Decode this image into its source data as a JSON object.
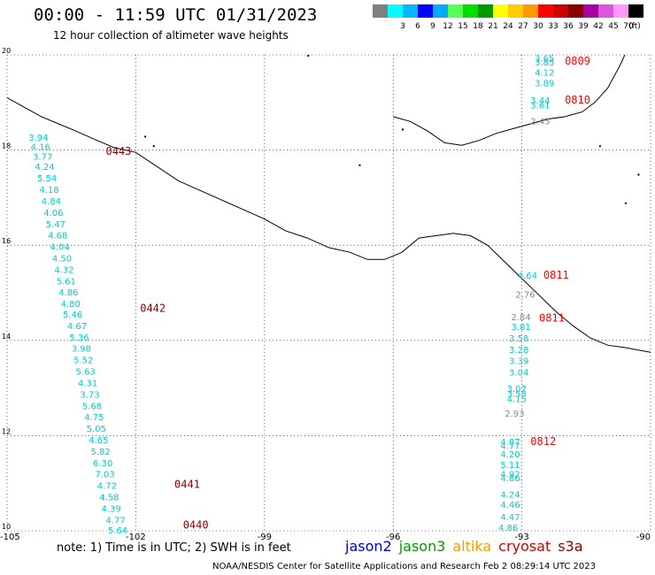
{
  "header": {
    "title": "00:00 - 11:59 UTC 01/31/2023",
    "subtitle": "12 hour collection of altimeter wave heights"
  },
  "legend": {
    "unit": "(ft)",
    "swatches": [
      {
        "label": "",
        "color": "#7f7f7f"
      },
      {
        "label": "3",
        "color": "#00ffff"
      },
      {
        "label": "6",
        "color": "#00b8ff"
      },
      {
        "label": "9",
        "color": "#0000ff"
      },
      {
        "label": "12",
        "color": "#00aaff"
      },
      {
        "label": "15",
        "color": "#55ff55"
      },
      {
        "label": "18",
        "color": "#00dd00"
      },
      {
        "label": "21",
        "color": "#009900"
      },
      {
        "label": "24",
        "color": "#ffff00"
      },
      {
        "label": "27",
        "color": "#ffcc00"
      },
      {
        "label": "30",
        "color": "#ff9900"
      },
      {
        "label": "33",
        "color": "#ff0000"
      },
      {
        "label": "36",
        "color": "#cc0000"
      },
      {
        "label": "39",
        "color": "#880000"
      },
      {
        "label": "42",
        "color": "#aa00aa"
      },
      {
        "label": "45",
        "color": "#dd55dd"
      },
      {
        "label": "70",
        "color": "#ff99ff"
      },
      {
        "label": "",
        "color": "#000000"
      }
    ]
  },
  "axes": {
    "lat_ticks": [
      "20",
      "18",
      "16",
      "14",
      "12",
      "10"
    ],
    "lon_ticks": [
      "-105",
      "-102",
      "-99",
      "-96",
      "-93",
      "-90"
    ]
  },
  "colors": {
    "jason2": "#0000cc",
    "jason3": "#009900",
    "altika": "#ff9900",
    "cryosat": "#cc0000",
    "s3a": "#880000",
    "wave_cyan": "#00cccc",
    "wave_gray": "#888888"
  },
  "passes": [
    {
      "label": "0443",
      "color": "#880000",
      "lon": -102.7,
      "lat": 17.9
    },
    {
      "label": "0442",
      "color": "#880000",
      "lon": -101.9,
      "lat": 14.6
    },
    {
      "label": "0441",
      "color": "#880000",
      "lon": -101.1,
      "lat": 10.9
    },
    {
      "label": "0440",
      "color": "#880000",
      "lon": -100.9,
      "lat": 10.05
    },
    {
      "label": "0809",
      "color": "#ff0000",
      "lon": -92.0,
      "lat": 19.8
    },
    {
      "label": "0810",
      "color": "#ff0000",
      "lon": -92.0,
      "lat": 18.98
    },
    {
      "label": "0811",
      "color": "#ff0000",
      "lon": -92.5,
      "lat": 15.3
    },
    {
      "label": "0811",
      "color": "#ff0000",
      "lon": -92.6,
      "lat": 14.4
    },
    {
      "label": "0812",
      "color": "#ff0000",
      "lon": -92.8,
      "lat": 11.8
    }
  ],
  "wave_heights": [
    {
      "v": "3.94",
      "lon": -104.5,
      "lat": 18.2,
      "c": "cyan"
    },
    {
      "v": "4.16",
      "lon": -104.45,
      "lat": 18.0,
      "c": "cyan"
    },
    {
      "v": "3.77",
      "lon": -104.4,
      "lat": 17.8,
      "c": "cyan"
    },
    {
      "v": "4.24",
      "lon": -104.35,
      "lat": 17.58,
      "c": "cyan"
    },
    {
      "v": "5.54",
      "lon": -104.3,
      "lat": 17.34,
      "c": "cyan"
    },
    {
      "v": "4.18",
      "lon": -104.25,
      "lat": 17.1,
      "c": "cyan"
    },
    {
      "v": "4.84",
      "lon": -104.2,
      "lat": 16.86,
      "c": "cyan"
    },
    {
      "v": "4.06",
      "lon": -104.15,
      "lat": 16.62,
      "c": "cyan"
    },
    {
      "v": "5.47",
      "lon": -104.1,
      "lat": 16.38,
      "c": "cyan"
    },
    {
      "v": "4.68",
      "lon": -104.05,
      "lat": 16.14,
      "c": "cyan"
    },
    {
      "v": "4.04",
      "lon": -104.0,
      "lat": 15.9,
      "c": "cyan"
    },
    {
      "v": "4.50",
      "lon": -103.95,
      "lat": 15.66,
      "c": "cyan"
    },
    {
      "v": "4.32",
      "lon": -103.9,
      "lat": 15.42,
      "c": "cyan"
    },
    {
      "v": "5.61",
      "lon": -103.85,
      "lat": 15.18,
      "c": "cyan"
    },
    {
      "v": "4.86",
      "lon": -103.8,
      "lat": 14.94,
      "c": "cyan"
    },
    {
      "v": "4.80",
      "lon": -103.75,
      "lat": 14.7,
      "c": "cyan"
    },
    {
      "v": "5.46",
      "lon": -103.7,
      "lat": 14.48,
      "c": "cyan"
    },
    {
      "v": "4.67",
      "lon": -103.6,
      "lat": 14.24,
      "c": "cyan"
    },
    {
      "v": "5.36",
      "lon": -103.55,
      "lat": 14.0,
      "c": "cyan"
    },
    {
      "v": "3.98",
      "lon": -103.5,
      "lat": 13.76,
      "c": "cyan"
    },
    {
      "v": "5.52",
      "lon": -103.45,
      "lat": 13.52,
      "c": "cyan"
    },
    {
      "v": "5.63",
      "lon": -103.4,
      "lat": 13.28,
      "c": "cyan"
    },
    {
      "v": "4.31",
      "lon": -103.35,
      "lat": 13.04,
      "c": "cyan"
    },
    {
      "v": "3.73",
      "lon": -103.3,
      "lat": 12.8,
      "c": "cyan"
    },
    {
      "v": "5.68",
      "lon": -103.25,
      "lat": 12.56,
      "c": "cyan"
    },
    {
      "v": "4.75",
      "lon": -103.2,
      "lat": 12.32,
      "c": "cyan"
    },
    {
      "v": "5.05",
      "lon": -103.15,
      "lat": 12.08,
      "c": "cyan"
    },
    {
      "v": "4.65",
      "lon": -103.1,
      "lat": 11.84,
      "c": "cyan"
    },
    {
      "v": "5.82",
      "lon": -103.05,
      "lat": 11.6,
      "c": "cyan"
    },
    {
      "v": "6.30",
      "lon": -103.0,
      "lat": 11.36,
      "c": "cyan"
    },
    {
      "v": "7.03",
      "lon": -102.95,
      "lat": 11.12,
      "c": "cyan"
    },
    {
      "v": "4.72",
      "lon": -102.9,
      "lat": 10.88,
      "c": "cyan"
    },
    {
      "v": "4.58",
      "lon": -102.85,
      "lat": 10.64,
      "c": "cyan"
    },
    {
      "v": "4.39",
      "lon": -102.8,
      "lat": 10.4,
      "c": "cyan"
    },
    {
      "v": "4.77",
      "lon": -102.7,
      "lat": 10.16,
      "c": "cyan"
    },
    {
      "v": "5.64",
      "lon": -102.65,
      "lat": 9.94,
      "c": "cyan"
    },
    {
      "v": "3.65",
      "lon": -92.7,
      "lat": 19.86,
      "c": "cyan"
    },
    {
      "v": "3.85",
      "lon": -92.7,
      "lat": 19.78,
      "c": "cyan"
    },
    {
      "v": "4.12",
      "lon": -92.7,
      "lat": 19.56,
      "c": "cyan"
    },
    {
      "v": "3.89",
      "lon": -92.7,
      "lat": 19.34,
      "c": "cyan"
    },
    {
      "v": "3.44",
      "lon": -92.8,
      "lat": 18.98,
      "c": "cyan"
    },
    {
      "v": "3.61",
      "lon": -92.8,
      "lat": 18.88,
      "c": "cyan"
    },
    {
      "v": "2.43",
      "lon": -92.8,
      "lat": 18.54,
      "c": "gray"
    },
    {
      "v": "4.64",
      "lon": -93.1,
      "lat": 15.3,
      "c": "cyan"
    },
    {
      "v": "2.76",
      "lon": -93.15,
      "lat": 14.9,
      "c": "gray"
    },
    {
      "v": "2.84",
      "lon": -93.25,
      "lat": 14.42,
      "c": "gray"
    },
    {
      "v": "3.81",
      "lon": -93.25,
      "lat": 14.22,
      "c": "cyan"
    },
    {
      "v": "3.58",
      "lon": -93.3,
      "lat": 13.98,
      "c": "cyan"
    },
    {
      "v": "3.28",
      "lon": -93.3,
      "lat": 13.74,
      "c": "cyan"
    },
    {
      "v": "3.39",
      "lon": -93.3,
      "lat": 13.5,
      "c": "cyan"
    },
    {
      "v": "3.04",
      "lon": -93.3,
      "lat": 13.26,
      "c": "cyan"
    },
    {
      "v": "3.07",
      "lon": -93.35,
      "lat": 12.92,
      "c": "cyan"
    },
    {
      "v": "3.58",
      "lon": -93.35,
      "lat": 12.82,
      "c": "cyan"
    },
    {
      "v": "4.15",
      "lon": -93.35,
      "lat": 12.7,
      "c": "cyan"
    },
    {
      "v": "2.93",
      "lon": -93.4,
      "lat": 12.4,
      "c": "gray"
    },
    {
      "v": "4.87",
      "lon": -93.5,
      "lat": 11.8,
      "c": "cyan"
    },
    {
      "v": "4.77",
      "lon": -93.5,
      "lat": 11.72,
      "c": "cyan"
    },
    {
      "v": "4.20",
      "lon": -93.5,
      "lat": 11.54,
      "c": "cyan"
    },
    {
      "v": "5.11",
      "lon": -93.5,
      "lat": 11.32,
      "c": "cyan"
    },
    {
      "v": "4.92",
      "lon": -93.5,
      "lat": 11.12,
      "c": "cyan"
    },
    {
      "v": "4.86",
      "lon": -93.5,
      "lat": 11.04,
      "c": "cyan"
    },
    {
      "v": "4.24",
      "lon": -93.5,
      "lat": 10.7,
      "c": "cyan"
    },
    {
      "v": "4.46",
      "lon": -93.5,
      "lat": 10.48,
      "c": "cyan"
    },
    {
      "v": "4.47",
      "lon": -93.5,
      "lat": 10.22,
      "c": "cyan"
    },
    {
      "v": "4.86",
      "lon": -93.55,
      "lat": 10.0,
      "c": "cyan"
    }
  ],
  "coastline": [
    [
      -105.0,
      19.1
    ],
    [
      -104.6,
      18.9
    ],
    [
      -104.2,
      18.7
    ],
    [
      -103.8,
      18.55
    ],
    [
      -103.4,
      18.4
    ],
    [
      -102.9,
      18.2
    ],
    [
      -102.5,
      18.05
    ],
    [
      -102.0,
      17.95
    ],
    [
      -101.5,
      17.65
    ],
    [
      -101.0,
      17.35
    ],
    [
      -100.5,
      17.15
    ],
    [
      -100.0,
      16.95
    ],
    [
      -99.5,
      16.75
    ],
    [
      -99.0,
      16.55
    ],
    [
      -98.5,
      16.3
    ],
    [
      -98.0,
      16.15
    ],
    [
      -97.5,
      15.95
    ],
    [
      -97.0,
      15.85
    ],
    [
      -96.6,
      15.7
    ],
    [
      -96.2,
      15.7
    ],
    [
      -95.8,
      15.85
    ],
    [
      -95.4,
      16.15
    ],
    [
      -95.0,
      16.2
    ],
    [
      -94.6,
      16.25
    ],
    [
      -94.2,
      16.2
    ],
    [
      -93.8,
      16.0
    ],
    [
      -93.4,
      15.65
    ],
    [
      -93.0,
      15.3
    ],
    [
      -92.6,
      14.95
    ],
    [
      -92.2,
      14.6
    ],
    [
      -91.8,
      14.3
    ],
    [
      -91.4,
      14.05
    ],
    [
      -91.0,
      13.9
    ],
    [
      -90.6,
      13.85
    ],
    [
      -90.0,
      13.75
    ]
  ],
  "gulf_coast": [
    [
      -96.0,
      18.7
    ],
    [
      -95.6,
      18.6
    ],
    [
      -95.2,
      18.4
    ],
    [
      -94.8,
      18.15
    ],
    [
      -94.4,
      18.1
    ],
    [
      -94.0,
      18.2
    ],
    [
      -93.6,
      18.35
    ],
    [
      -93.2,
      18.45
    ],
    [
      -92.8,
      18.55
    ],
    [
      -92.4,
      18.65
    ],
    [
      -92.0,
      18.7
    ],
    [
      -91.6,
      18.8
    ],
    [
      -91.3,
      19.0
    ],
    [
      -91.0,
      19.3
    ],
    [
      -90.7,
      19.8
    ],
    [
      -90.6,
      20.0
    ]
  ],
  "footer": {
    "note": "note: 1) Time is in UTC; 2) SWH is in feet",
    "satellites": [
      {
        "name": "jason2",
        "color": "#0000cc"
      },
      {
        "name": "jason3",
        "color": "#009900"
      },
      {
        "name": "altika",
        "color": "#ff9900"
      },
      {
        "name": "cryosat",
        "color": "#cc0000"
      },
      {
        "name": "s3a",
        "color": "#880000"
      }
    ],
    "credit": "NOAA/NESDIS Center for Satellite Applications and Research    Feb  2 08:29:14 UTC 2023"
  }
}
